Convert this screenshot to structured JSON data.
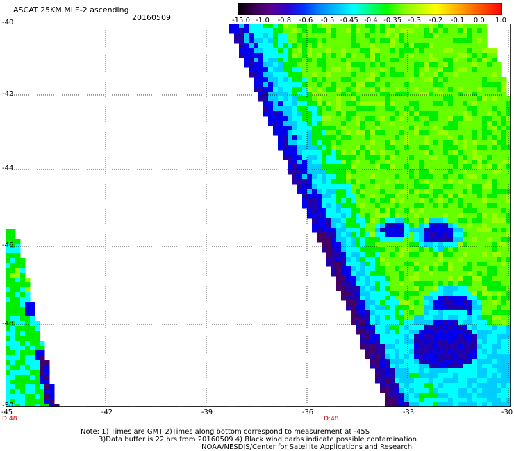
{
  "header": {
    "title": "ASCAT 25KM MLE-2 ascending",
    "date": "20160509"
  },
  "colorbar": {
    "labels": [
      "-15.0",
      "-1.0",
      "-0.8",
      "-0.6",
      "-0.5",
      "-0.45",
      "-0.4",
      "-0.35",
      "-0.3",
      "-0.2",
      "-0.1",
      "0.0",
      "1.0"
    ],
    "colors": [
      "#000000",
      "#3a0050",
      "#5a0090",
      "#3000d0",
      "#0030ff",
      "#0088ff",
      "#00c0ff",
      "#00ffff",
      "#00ff80",
      "#00ff00",
      "#80ff00",
      "#c0ff00",
      "#ffff00",
      "#ffc000",
      "#ff8000",
      "#ff4000",
      "#ff0000"
    ]
  },
  "axes": {
    "x_ticks": [
      "-45",
      "-42",
      "-39",
      "-36",
      "-33",
      "-30"
    ],
    "y_ticks": [
      "-40",
      "-42",
      "-44",
      "-46",
      "-48",
      "-50"
    ],
    "lon_range": [
      -45,
      -30
    ],
    "lat_range": [
      -50,
      -40
    ]
  },
  "markers": {
    "left": "D:48",
    "right": "D:48"
  },
  "footer": {
    "line1": "Note: 1) Times are GMT 2)Times along bottom correspond to measurement at -45S",
    "line2": "3)Data buffer is 22 hrs from 20160509 4) Black wind barbs indicate possible contamination",
    "line3": "NOAA/NESDIS/Center for Satellite Applications and Research"
  },
  "palette": {
    "lime": "#66ff00",
    "green": "#00ee00",
    "cyan": "#00ffff",
    "lightblue": "#00ccff",
    "blue": "#0000ee",
    "darkblue": "#2200aa",
    "purple": "#440066",
    "yellowgreen": "#99ff00"
  }
}
